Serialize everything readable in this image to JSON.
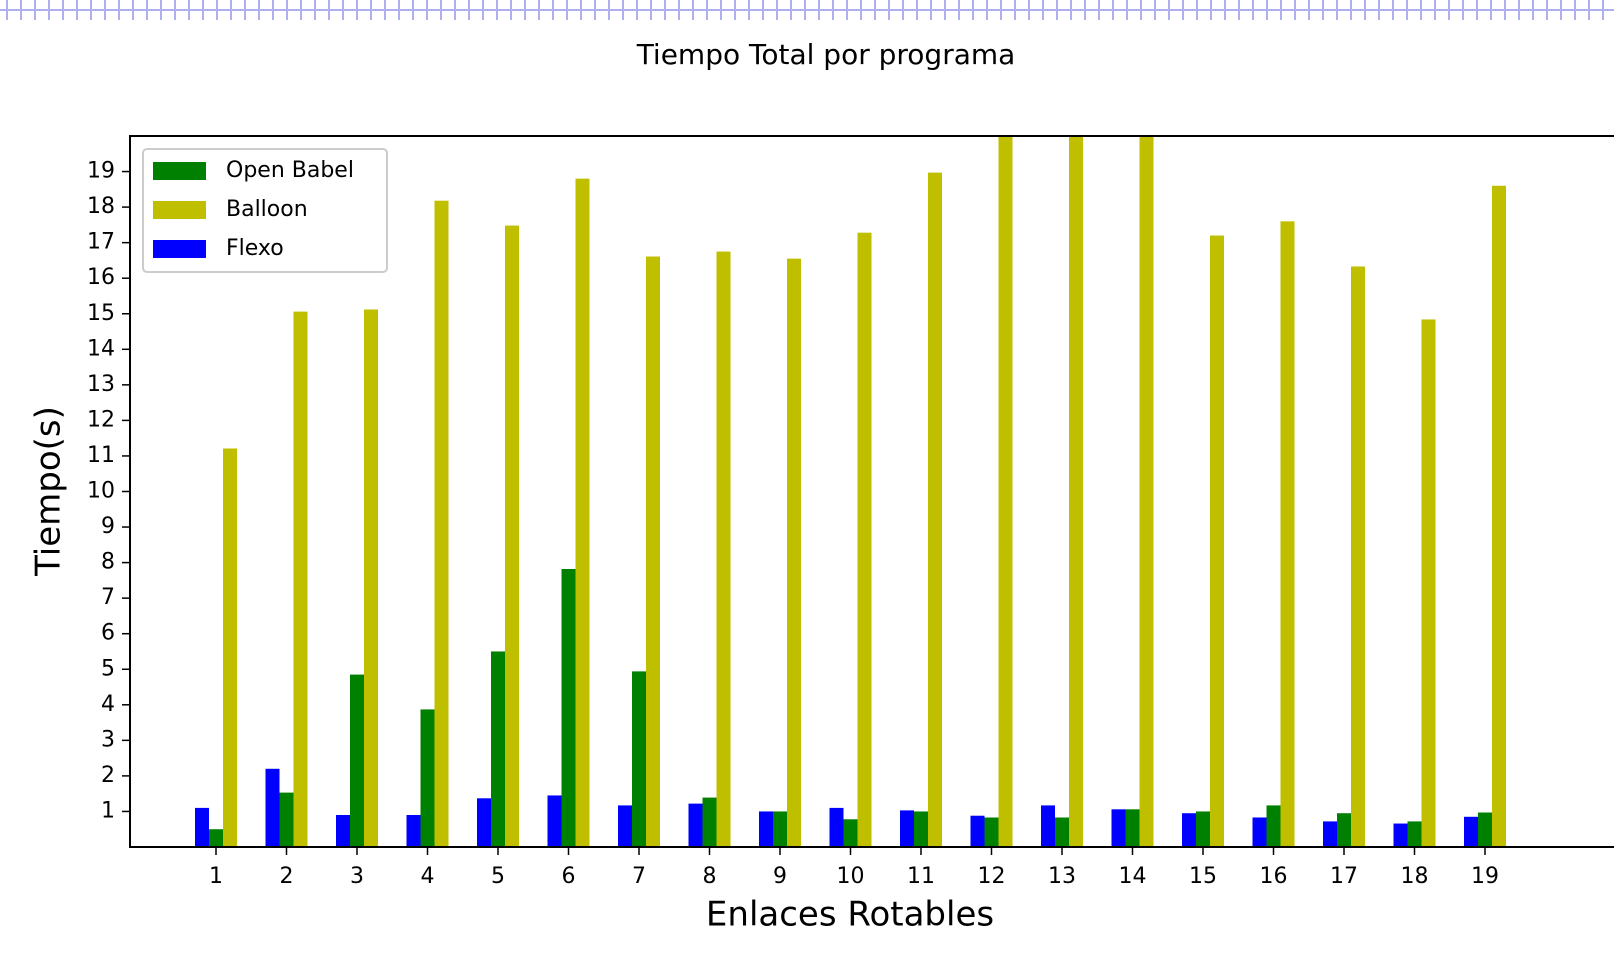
{
  "chart_data": {
    "type": "bar",
    "title": "Tiempo Total por programa",
    "x_label": "Enlaces Rotables",
    "y_label": "Tiempo(s)",
    "categories": [
      "1",
      "2",
      "3",
      "4",
      "5",
      "6",
      "7",
      "8",
      "9",
      "10",
      "11",
      "12",
      "13",
      "14",
      "15",
      "16",
      "17",
      "18",
      "19"
    ],
    "series": [
      {
        "name": "Flexo",
        "color": "#0000ff",
        "values": [
          1.1,
          2.2,
          0.9,
          0.9,
          1.37,
          1.45,
          1.17,
          1.22,
          1.0,
          1.1,
          1.03,
          0.88,
          1.17,
          1.06,
          0.95,
          0.83,
          0.72,
          0.66,
          0.85
        ]
      },
      {
        "name": "Open Babel",
        "color": "#008000",
        "values": [
          0.5,
          1.53,
          4.85,
          3.87,
          5.5,
          7.82,
          4.94,
          1.39,
          1.0,
          0.78,
          1.0,
          0.83,
          0.83,
          1.06,
          1.0,
          1.17,
          0.95,
          0.72,
          0.97
        ]
      },
      {
        "name": "Balloon",
        "color": "#bfbf00",
        "values": [
          11.21,
          15.06,
          15.12,
          18.18,
          17.48,
          18.8,
          16.61,
          16.75,
          16.55,
          17.28,
          18.97,
          20.5,
          20.5,
          20.5,
          17.2,
          17.6,
          16.33,
          14.84,
          18.6
        ]
      }
    ],
    "legend_order": [
      "Open Babel",
      "Balloon",
      "Flexo"
    ],
    "legend": "upper left",
    "ylim": [
      0,
      20
    ],
    "yticks": [
      1,
      2,
      3,
      4,
      5,
      6,
      7,
      8,
      9,
      10,
      11,
      12,
      13,
      14,
      15,
      16,
      17,
      18,
      19
    ]
  }
}
